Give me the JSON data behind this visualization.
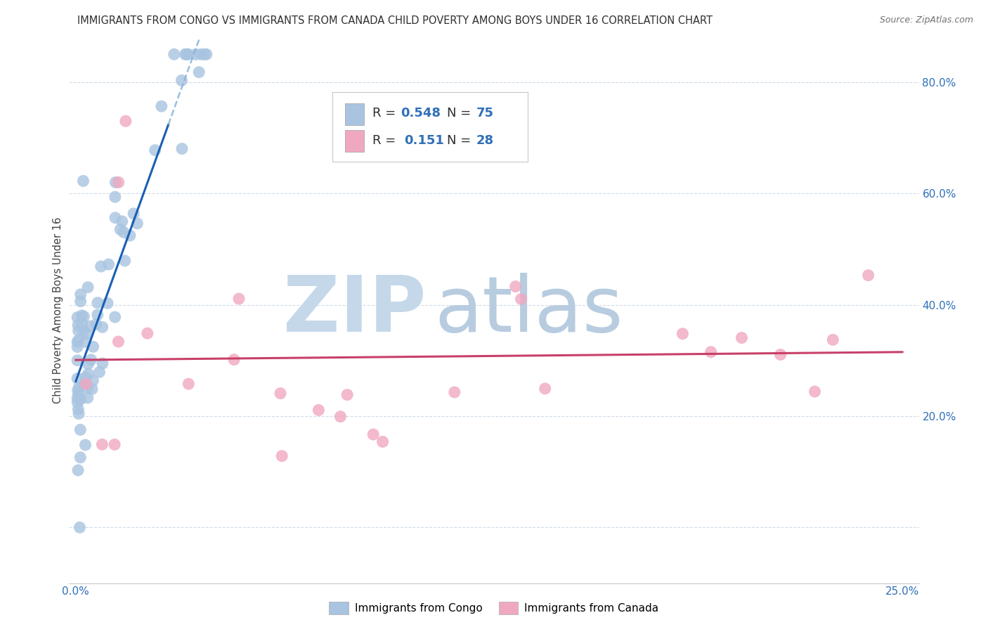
{
  "title": "IMMIGRANTS FROM CONGO VS IMMIGRANTS FROM CANADA CHILD POVERTY AMONG BOYS UNDER 16 CORRELATION CHART",
  "source": "Source: ZipAtlas.com",
  "ylabel": "Child Poverty Among Boys Under 16",
  "xlim": [
    -0.002,
    0.255
  ],
  "ylim": [
    -0.1,
    0.88
  ],
  "xtick_positions": [
    0.0,
    0.05,
    0.1,
    0.15,
    0.2,
    0.25
  ],
  "xtick_labels": [
    "0.0%",
    "",
    "",
    "",
    "",
    "25.0%"
  ],
  "ytick_positions": [
    0.0,
    0.2,
    0.4,
    0.6,
    0.8
  ],
  "ytick_labels": [
    "",
    "20.0%",
    "40.0%",
    "60.0%",
    "80.0%"
  ],
  "legend1_label": "R = 0.548   N = 75",
  "legend2_label": "R =  0.151   N = 28",
  "watermark_zip": "ZIP",
  "watermark_atlas": "atlas",
  "watermark_color_zip": "#b8cfe0",
  "watermark_color_atlas": "#b8cfe0",
  "congo_color": "#a8c4e0",
  "canada_color": "#f0a8c0",
  "congo_line_color": "#1a5fb4",
  "canada_line_color": "#c8406a",
  "grid_color": "#d0dce8",
  "background_color": "#ffffff",
  "tick_label_color": "#3070b8",
  "legend_R_color": "#3070b8",
  "legend_N_color": "#202020",
  "title_color": "#303030",
  "ylabel_color": "#404040"
}
